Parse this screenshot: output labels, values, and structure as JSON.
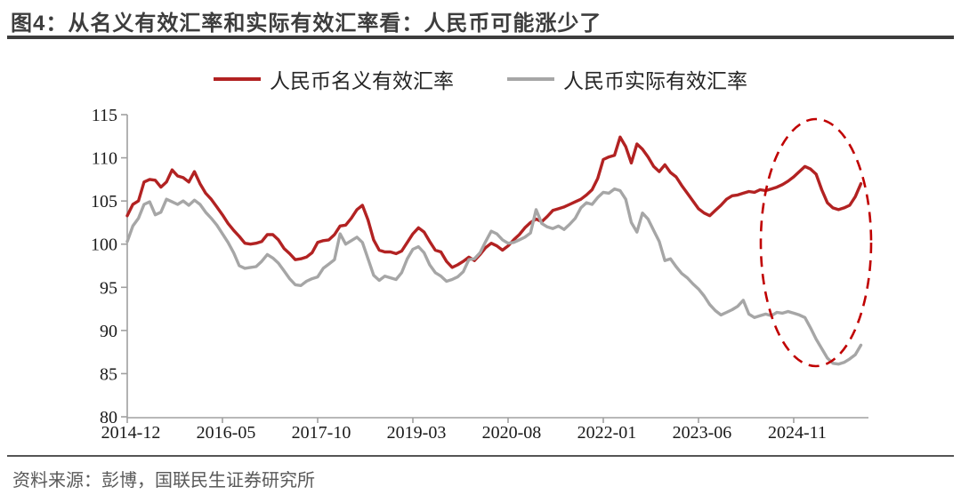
{
  "header": {
    "title": "图4：从名义有效汇率和实际有效汇率看：人民币可能涨少了"
  },
  "footer": {
    "source": "资料来源：彭博，国联民生证券研究所"
  },
  "colors": {
    "title": "#3d3d3d",
    "source": "#595959",
    "axis": "#a0a0a0",
    "tick_text": "#1a1a1a",
    "annotation": "#c00000"
  },
  "chart_data": {
    "type": "line",
    "title": "图4：从名义有效汇率和实际有效汇率看：人民币可能涨少了",
    "xlabel": "",
    "ylabel": "",
    "x_unit": "month",
    "x_start": "2014-12",
    "x_end": "2025-11",
    "ylim": [
      80,
      115
    ],
    "yticks": [
      115,
      110,
      105,
      100,
      95,
      90,
      85,
      80
    ],
    "xtick_labels": [
      "2014-12",
      "2016-05",
      "2017-10",
      "2019-03",
      "2020-08",
      "2022-01",
      "2023-06",
      "2024-11"
    ],
    "xtick_month_indices": [
      0,
      17,
      34,
      51,
      68,
      85,
      102,
      119
    ],
    "grid": false,
    "legend_position": "top-center",
    "annotation": {
      "shape": "dashed-ellipse",
      "color": "#c00000",
      "meaning": "highlights recent period where nominal rose while real fell"
    },
    "series": [
      {
        "name": "人民币名义有效汇率",
        "color": "#b22222",
        "values": [
          103.3,
          104.6,
          105.0,
          107.2,
          107.5,
          107.4,
          106.6,
          107.2,
          108.6,
          107.9,
          107.7,
          107.2,
          108.4,
          107.0,
          105.9,
          105.2,
          104.3,
          103.4,
          102.4,
          101.6,
          100.9,
          100.1,
          100.0,
          100.1,
          100.3,
          101.1,
          101.1,
          100.5,
          99.5,
          98.9,
          98.2,
          98.3,
          98.5,
          99.0,
          100.2,
          100.4,
          100.5,
          101.1,
          102.1,
          102.2,
          103.0,
          104.0,
          104.5,
          102.8,
          100.5,
          99.3,
          99.1,
          99.1,
          98.9,
          99.2,
          100.2,
          101.2,
          101.9,
          101.4,
          100.3,
          99.3,
          99.1,
          98.0,
          97.3,
          97.6,
          98.0,
          98.5,
          98.1,
          98.8,
          99.6,
          100.1,
          99.8,
          99.3,
          99.8,
          100.5,
          101.1,
          101.9,
          102.5,
          102.9,
          102.6,
          103.2,
          103.9,
          104.1,
          104.3,
          104.6,
          104.9,
          105.2,
          105.7,
          106.3,
          107.6,
          109.8,
          110.1,
          110.3,
          112.4,
          111.3,
          109.4,
          111.6,
          111.0,
          110.1,
          109.0,
          108.4,
          109.2,
          108.3,
          107.8,
          106.8,
          105.9,
          105.0,
          104.1,
          103.6,
          103.3,
          103.9,
          104.5,
          105.2,
          105.6,
          105.7,
          105.9,
          106.1,
          106.0,
          106.3,
          106.2,
          106.4,
          106.6,
          106.9,
          107.3,
          107.8,
          108.4,
          109.0,
          108.7,
          108.1,
          106.3,
          104.8,
          104.2,
          104.0,
          104.2,
          104.5,
          105.5,
          107.0
        ]
      },
      {
        "name": "人民币实际有效汇率",
        "color": "#a6a6a6",
        "values": [
          100.3,
          102.1,
          103.0,
          104.6,
          104.9,
          103.4,
          103.7,
          105.2,
          104.9,
          104.6,
          105.0,
          104.5,
          105.1,
          104.6,
          103.7,
          103.0,
          102.2,
          101.2,
          100.2,
          99.0,
          97.5,
          97.2,
          97.3,
          97.4,
          98.0,
          98.8,
          98.4,
          97.8,
          96.9,
          96.0,
          95.3,
          95.2,
          95.7,
          96.0,
          96.2,
          97.2,
          97.7,
          98.2,
          101.2,
          100.0,
          100.4,
          100.8,
          100.2,
          98.3,
          96.4,
          95.8,
          96.3,
          96.1,
          95.9,
          96.7,
          98.3,
          99.4,
          99.7,
          99.0,
          97.6,
          96.7,
          96.3,
          95.7,
          95.9,
          96.2,
          96.8,
          98.2,
          98.3,
          99.0,
          100.3,
          101.5,
          101.2,
          100.5,
          100.1,
          100.2,
          100.5,
          100.8,
          101.3,
          104.0,
          102.4,
          102.0,
          101.8,
          102.1,
          101.7,
          102.3,
          103.0,
          104.2,
          104.8,
          104.6,
          105.4,
          106.0,
          105.9,
          106.4,
          106.2,
          105.2,
          102.5,
          101.4,
          103.6,
          102.9,
          101.6,
          100.3,
          98.1,
          98.3,
          97.4,
          96.6,
          96.1,
          95.4,
          94.8,
          94.0,
          93.0,
          92.3,
          91.8,
          92.1,
          92.4,
          92.8,
          93.5,
          91.9,
          91.5,
          91.7,
          91.9,
          91.7,
          92.1,
          92.0,
          92.2,
          92.0,
          91.8,
          91.5,
          90.3,
          89.0,
          87.9,
          86.8,
          86.2,
          86.1,
          86.3,
          86.7,
          87.2,
          88.3
        ]
      }
    ]
  }
}
